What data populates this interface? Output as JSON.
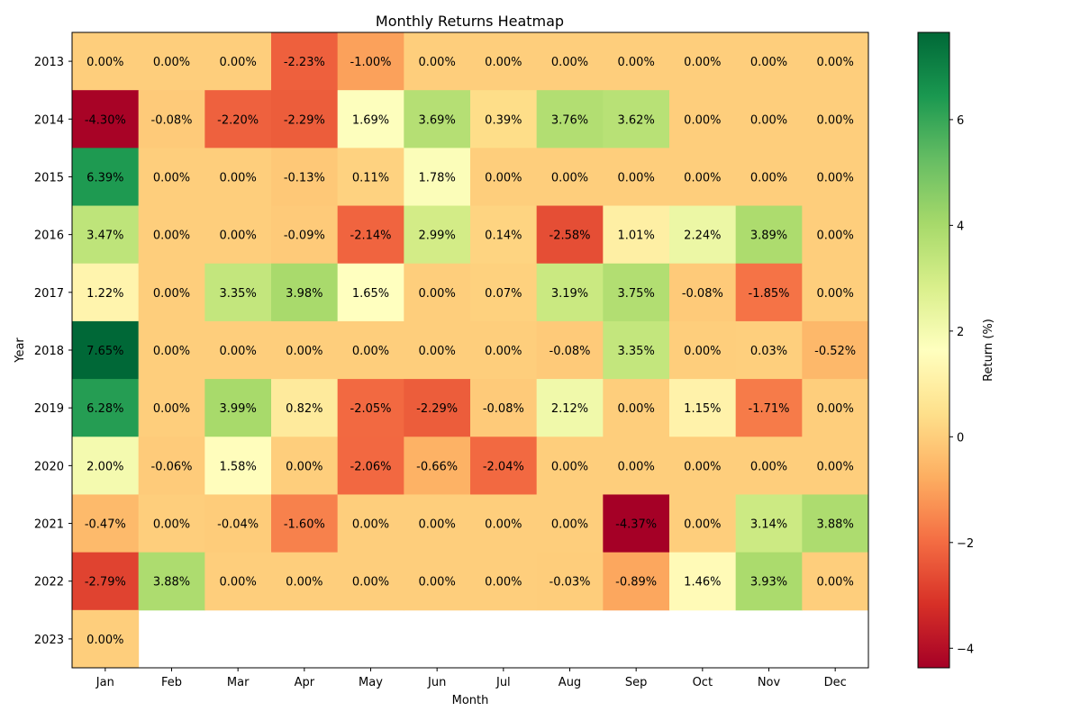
{
  "chart_data": {
    "type": "heatmap",
    "title": "Monthly Returns Heatmap",
    "xlabel": "Month",
    "ylabel": "Year",
    "x_categories": [
      "Jan",
      "Feb",
      "Mar",
      "Apr",
      "May",
      "Jun",
      "Jul",
      "Aug",
      "Sep",
      "Oct",
      "Nov",
      "Dec"
    ],
    "y_categories": [
      "2013",
      "2014",
      "2015",
      "2016",
      "2017",
      "2018",
      "2019",
      "2020",
      "2021",
      "2022",
      "2023"
    ],
    "values": [
      [
        0.0,
        0.0,
        0.0,
        -2.23,
        -1.0,
        0.0,
        0.0,
        0.0,
        0.0,
        0.0,
        0.0,
        0.0
      ],
      [
        -4.3,
        -0.08,
        -2.2,
        -2.29,
        1.69,
        3.69,
        0.39,
        3.76,
        3.62,
        0.0,
        0.0,
        0.0
      ],
      [
        6.39,
        0.0,
        0.0,
        -0.13,
        0.11,
        1.78,
        0.0,
        0.0,
        0.0,
        0.0,
        0.0,
        0.0
      ],
      [
        3.47,
        0.0,
        0.0,
        -0.09,
        -2.14,
        2.99,
        0.14,
        -2.58,
        1.01,
        2.24,
        3.89,
        0.0
      ],
      [
        1.22,
        0.0,
        3.35,
        3.98,
        1.65,
        0.0,
        0.07,
        3.19,
        3.75,
        -0.08,
        -1.85,
        0.0
      ],
      [
        7.65,
        0.0,
        0.0,
        0.0,
        0.0,
        0.0,
        0.0,
        -0.08,
        3.35,
        0.0,
        0.03,
        -0.52
      ],
      [
        6.28,
        0.0,
        3.99,
        0.82,
        -2.05,
        -2.29,
        -0.08,
        2.12,
        0.0,
        1.15,
        -1.71,
        0.0
      ],
      [
        2.0,
        -0.06,
        1.58,
        0.0,
        -2.06,
        -0.66,
        -2.04,
        0.0,
        0.0,
        0.0,
        0.0,
        0.0
      ],
      [
        -0.47,
        0.0,
        -0.04,
        -1.6,
        0.0,
        0.0,
        0.0,
        0.0,
        -4.37,
        0.0,
        3.14,
        3.88
      ],
      [
        -2.79,
        3.88,
        0.0,
        0.0,
        0.0,
        0.0,
        0.0,
        -0.03,
        -0.89,
        1.46,
        3.93,
        0.0
      ],
      [
        0.0,
        null,
        null,
        null,
        null,
        null,
        null,
        null,
        null,
        null,
        null,
        null
      ]
    ],
    "value_format": "percent_2dp",
    "colormap": "RdYlGn",
    "color_range": [
      -4.37,
      7.65
    ],
    "colorbar": {
      "label": "Return (%)",
      "ticks": [
        -4,
        -2,
        0,
        2,
        4,
        6
      ]
    },
    "grid": false,
    "legend": "colorbar-right"
  }
}
